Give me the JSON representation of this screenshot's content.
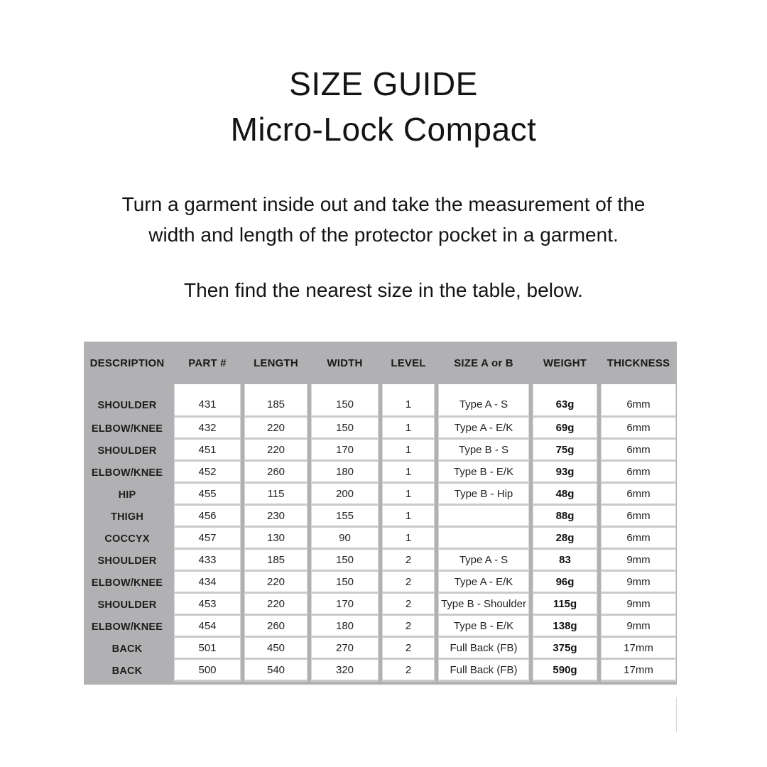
{
  "title": {
    "line1": "SIZE GUIDE",
    "line2": "Micro-Lock Compact"
  },
  "instructions": {
    "p1_line1": "Turn a garment inside out and take the measurement of the",
    "p1_line2": "width and length of the protector pocket in a garment.",
    "p2": "Then find the nearest size in the table, below."
  },
  "table": {
    "columns": [
      "DESCRIPTION",
      "PART #",
      "LENGTH",
      "WIDTH",
      "LEVEL",
      "SIZE A or B",
      "WEIGHT",
      "THICKNESS"
    ],
    "rows": [
      [
        "SHOULDER",
        "431",
        "185",
        "150",
        "1",
        "Type A - S",
        "63g",
        "6mm"
      ],
      [
        "ELBOW/KNEE",
        "432",
        "220",
        "150",
        "1",
        "Type A - E/K",
        "69g",
        "6mm"
      ],
      [
        "SHOULDER",
        "451",
        "220",
        "170",
        "1",
        "Type B - S",
        "75g",
        "6mm"
      ],
      [
        "ELBOW/KNEE",
        "452",
        "260",
        "180",
        "1",
        "Type B - E/K",
        "93g",
        "6mm"
      ],
      [
        "HIP",
        "455",
        "115",
        "200",
        "1",
        "Type B - Hip",
        "48g",
        "6mm"
      ],
      [
        "THIGH",
        "456",
        "230",
        "155",
        "1",
        "",
        "88g",
        "6mm"
      ],
      [
        "COCCYX",
        "457",
        "130",
        "90",
        "1",
        "",
        "28g",
        "6mm"
      ],
      [
        "SHOULDER",
        "433",
        "185",
        "150",
        "2",
        "Type A - S",
        "83",
        "9mm"
      ],
      [
        "ELBOW/KNEE",
        "434",
        "220",
        "150",
        "2",
        "Type A - E/K",
        "96g",
        "9mm"
      ],
      [
        "SHOULDER",
        "453",
        "220",
        "170",
        "2",
        "Type B - Shoulder",
        "115g",
        "9mm"
      ],
      [
        "ELBOW/KNEE",
        "454",
        "260",
        "180",
        "2",
        "Type B - E/K",
        "138g",
        "9mm"
      ],
      [
        "BACK",
        "501",
        "450",
        "270",
        "2",
        "Full Back (FB)",
        "375g",
        "17mm"
      ],
      [
        "BACK",
        "500",
        "540",
        "320",
        "2",
        "Full Back (FB)",
        "590g",
        "17mm"
      ]
    ],
    "colors": {
      "table_background": "#b1b1b3",
      "row_separator": "#cacacc",
      "cell_background": "#ffffff",
      "text": "#141414"
    }
  }
}
